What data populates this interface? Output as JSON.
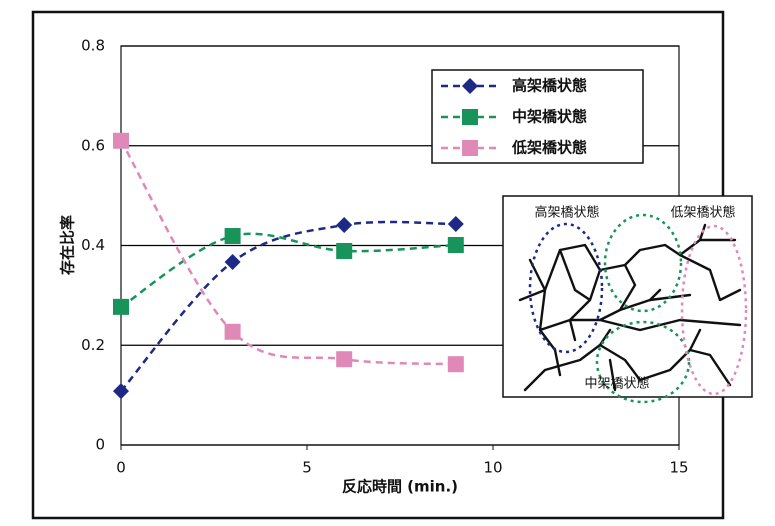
{
  "chart_data": {
    "type": "line",
    "x_label": "反応時間 (min.)",
    "y_label": "存在比率",
    "x": [
      0,
      3,
      6,
      9
    ],
    "series": [
      {
        "name": "高架橋状態",
        "color": "#1c2a86",
        "marker": "diamond",
        "values": [
          0.108,
          0.367,
          0.441,
          0.443
        ]
      },
      {
        "name": "中架橋状態",
        "color": "#16945a",
        "marker": "square",
        "values": [
          0.277,
          0.419,
          0.389,
          0.401
        ]
      },
      {
        "name": "低架橋状態",
        "color": "#e088b8",
        "marker": "square",
        "values": [
          0.61,
          0.227,
          0.172,
          0.162
        ]
      }
    ],
    "xlim": [
      0,
      15
    ],
    "xticks": [
      0,
      5,
      10,
      15
    ],
    "ylim": [
      0,
      0.8
    ],
    "yticks": [
      0,
      0.2,
      0.4,
      0.6,
      0.8
    ],
    "grid": true,
    "legend": "upper right",
    "annotations": [
      "高架橋状態",
      "低架橋状態",
      "中架橋状態"
    ]
  }
}
